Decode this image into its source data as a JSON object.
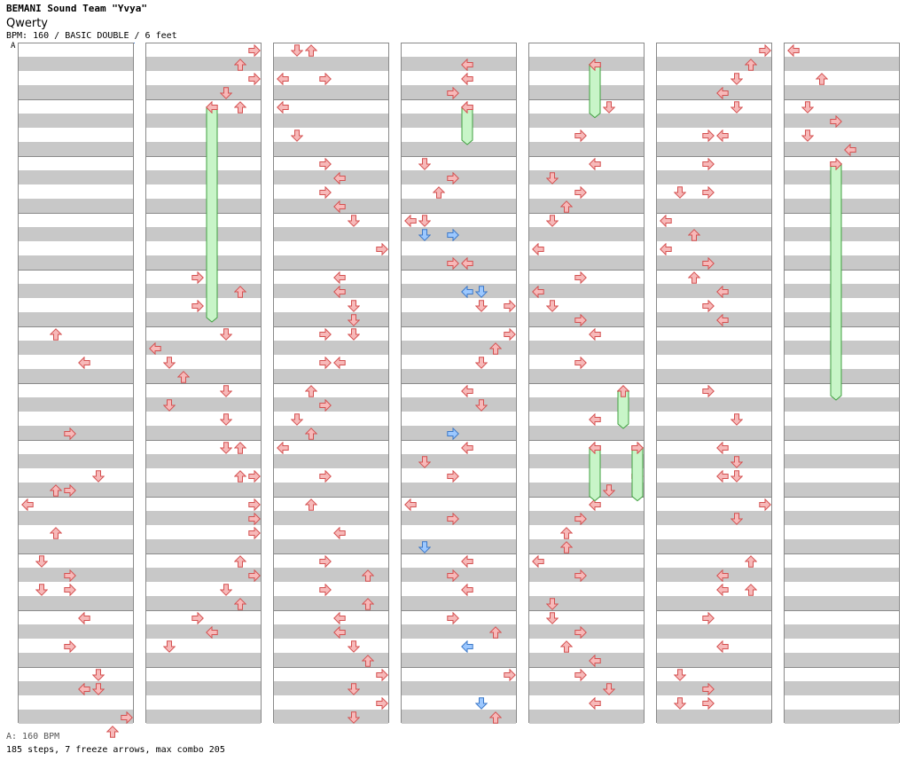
{
  "header": {
    "artist": "BEMANI Sound Team \"Yvya\"",
    "song": "Qwerty",
    "info": "BPM: 160 / BASIC DOUBLE / 6 feet"
  },
  "bpm_marker": "A",
  "footer": {
    "bpm_line": "A: 160 BPM",
    "stats": "185 steps, 7 freeze arrows, max combo 205"
  },
  "colors": {
    "note_red": "#f7b9b9",
    "note_red_stroke": "#d45050",
    "note_blue": "#9cc8ff",
    "note_blue_stroke": "#3c78c8",
    "freeze": "#c8f5c8",
    "freeze_stroke": "#3f9f3f",
    "band": "#c8c8c8"
  },
  "chart": {
    "columns": [
      [
        [
          20,
          2,
          "r"
        ],
        [
          22,
          4,
          "r"
        ],
        [
          27,
          3,
          "r"
        ],
        [
          30,
          5,
          "r"
        ],
        [
          31,
          2,
          "r"
        ],
        [
          31,
          3,
          "r"
        ],
        [
          32,
          0,
          "r"
        ],
        [
          34,
          2,
          "r"
        ],
        [
          36,
          1,
          "r"
        ],
        [
          37,
          3,
          "r"
        ],
        [
          38,
          1,
          "r"
        ],
        [
          38,
          3,
          "r"
        ],
        [
          40,
          4,
          "r"
        ],
        [
          42,
          3,
          "r"
        ],
        [
          44,
          5,
          "r"
        ],
        [
          45,
          4,
          "r"
        ],
        [
          45,
          5,
          "r"
        ],
        [
          47,
          7,
          "r"
        ],
        [
          48,
          6,
          "r"
        ]
      ],
      [
        [
          0,
          7,
          "r"
        ],
        [
          1,
          6,
          "r"
        ],
        [
          2,
          7,
          "r"
        ],
        [
          3,
          5,
          "r"
        ],
        [
          4,
          6,
          "r"
        ],
        [
          16,
          3,
          "r"
        ],
        [
          17,
          6,
          "r"
        ],
        [
          18,
          3,
          "r"
        ],
        [
          20,
          5,
          "r"
        ],
        [
          21,
          0,
          "r"
        ],
        [
          22,
          1,
          "r"
        ],
        [
          23,
          2,
          "r"
        ],
        [
          24,
          5,
          "r"
        ],
        [
          25,
          1,
          "r"
        ],
        [
          26,
          5,
          "r"
        ],
        [
          28,
          5,
          "r"
        ],
        [
          28,
          6,
          "r"
        ],
        [
          30,
          6,
          "r"
        ],
        [
          30,
          7,
          "r"
        ],
        [
          32,
          7,
          "r"
        ],
        [
          33,
          7,
          "r"
        ],
        [
          34,
          7,
          "r"
        ],
        [
          36,
          6,
          "r"
        ],
        [
          37,
          7,
          "r"
        ],
        [
          38,
          5,
          "r"
        ],
        [
          39,
          6,
          "r"
        ],
        [
          40,
          3,
          "r"
        ],
        [
          41,
          4,
          "r"
        ],
        [
          42,
          1,
          "r"
        ]
      ],
      [
        [
          0,
          1,
          "r"
        ],
        [
          0,
          2,
          "r"
        ],
        [
          2,
          0,
          "r"
        ],
        [
          2,
          3,
          "r"
        ],
        [
          4,
          0,
          "r"
        ],
        [
          6,
          1,
          "r"
        ],
        [
          8,
          3,
          "r"
        ],
        [
          9,
          4,
          "r"
        ],
        [
          10,
          3,
          "r"
        ],
        [
          11,
          4,
          "r"
        ],
        [
          12,
          5,
          "r"
        ],
        [
          14,
          7,
          "r"
        ],
        [
          16,
          4,
          "r"
        ],
        [
          17,
          4,
          "r"
        ],
        [
          18,
          5,
          "r"
        ],
        [
          19,
          5,
          "r"
        ],
        [
          20,
          3,
          "r"
        ],
        [
          20,
          5,
          "r"
        ],
        [
          22,
          3,
          "r"
        ],
        [
          22,
          4,
          "r"
        ],
        [
          24,
          2,
          "r"
        ],
        [
          25,
          3,
          "r"
        ],
        [
          26,
          1,
          "r"
        ],
        [
          27,
          2,
          "r"
        ],
        [
          28,
          0,
          "r"
        ],
        [
          30,
          3,
          "r"
        ],
        [
          32,
          2,
          "r"
        ],
        [
          34,
          4,
          "r"
        ],
        [
          36,
          3,
          "r"
        ],
        [
          37,
          6,
          "r"
        ],
        [
          38,
          3,
          "r"
        ],
        [
          39,
          6,
          "r"
        ],
        [
          40,
          4,
          "r"
        ],
        [
          41,
          4,
          "r"
        ],
        [
          42,
          5,
          "r"
        ],
        [
          43,
          6,
          "r"
        ],
        [
          44,
          7,
          "r"
        ],
        [
          45,
          5,
          "r"
        ],
        [
          46,
          7,
          "r"
        ],
        [
          47,
          5,
          "r"
        ]
      ],
      [
        [
          1,
          4,
          "r"
        ],
        [
          2,
          4,
          "r"
        ],
        [
          3,
          3,
          "r"
        ],
        [
          4,
          4,
          "r"
        ],
        [
          8,
          1,
          "r"
        ],
        [
          9,
          3,
          "r"
        ],
        [
          10,
          2,
          "r"
        ],
        [
          12,
          0,
          "r"
        ],
        [
          12,
          1,
          "r"
        ],
        [
          13,
          1,
          "b"
        ],
        [
          13,
          3,
          "b"
        ],
        [
          15,
          3,
          "r"
        ],
        [
          15,
          4,
          "r"
        ],
        [
          17,
          4,
          "b"
        ],
        [
          17,
          5,
          "b"
        ],
        [
          18,
          5,
          "r"
        ],
        [
          18,
          7,
          "r"
        ],
        [
          20,
          7,
          "r"
        ],
        [
          21,
          6,
          "r"
        ],
        [
          22,
          5,
          "r"
        ],
        [
          24,
          4,
          "r"
        ],
        [
          25,
          5,
          "r"
        ],
        [
          27,
          3,
          "b"
        ],
        [
          28,
          4,
          "r"
        ],
        [
          29,
          1,
          "r"
        ],
        [
          30,
          3,
          "r"
        ],
        [
          32,
          0,
          "r"
        ],
        [
          33,
          3,
          "r"
        ],
        [
          35,
          1,
          "b"
        ],
        [
          36,
          4,
          "r"
        ],
        [
          37,
          3,
          "r"
        ],
        [
          38,
          4,
          "r"
        ],
        [
          40,
          3,
          "r"
        ],
        [
          41,
          6,
          "r"
        ],
        [
          42,
          4,
          "b"
        ],
        [
          44,
          7,
          "r"
        ],
        [
          46,
          5,
          "b"
        ],
        [
          47,
          6,
          "r"
        ]
      ],
      [
        [
          1,
          4,
          "r"
        ],
        [
          4,
          5,
          "r"
        ],
        [
          6,
          3,
          "r"
        ],
        [
          8,
          4,
          "r"
        ],
        [
          9,
          1,
          "r"
        ],
        [
          10,
          3,
          "r"
        ],
        [
          11,
          2,
          "r"
        ],
        [
          12,
          1,
          "r"
        ],
        [
          14,
          0,
          "r"
        ],
        [
          16,
          3,
          "r"
        ],
        [
          17,
          0,
          "r"
        ],
        [
          18,
          1,
          "r"
        ],
        [
          19,
          3,
          "r"
        ],
        [
          20,
          4,
          "r"
        ],
        [
          22,
          3,
          "r"
        ],
        [
          24,
          6,
          "r"
        ],
        [
          26,
          4,
          "r"
        ],
        [
          28,
          4,
          "r"
        ],
        [
          28,
          7,
          "r"
        ],
        [
          30,
          7,
          "r"
        ],
        [
          31,
          5,
          "r"
        ],
        [
          32,
          4,
          "r"
        ],
        [
          33,
          3,
          "r"
        ],
        [
          34,
          2,
          "r"
        ],
        [
          35,
          2,
          "r"
        ],
        [
          36,
          0,
          "r"
        ],
        [
          37,
          3,
          "r"
        ],
        [
          39,
          1,
          "r"
        ],
        [
          40,
          1,
          "r"
        ],
        [
          41,
          3,
          "r"
        ],
        [
          42,
          2,
          "r"
        ],
        [
          43,
          4,
          "r"
        ],
        [
          44,
          3,
          "r"
        ],
        [
          45,
          5,
          "r"
        ],
        [
          46,
          4,
          "r"
        ]
      ],
      [
        [
          0,
          7,
          "r"
        ],
        [
          1,
          6,
          "r"
        ],
        [
          2,
          5,
          "r"
        ],
        [
          3,
          4,
          "r"
        ],
        [
          4,
          5,
          "r"
        ],
        [
          6,
          3,
          "r"
        ],
        [
          6,
          4,
          "r"
        ],
        [
          8,
          3,
          "r"
        ],
        [
          10,
          1,
          "r"
        ],
        [
          10,
          3,
          "r"
        ],
        [
          12,
          0,
          "r"
        ],
        [
          13,
          2,
          "r"
        ],
        [
          14,
          0,
          "r"
        ],
        [
          15,
          3,
          "r"
        ],
        [
          16,
          2,
          "r"
        ],
        [
          17,
          4,
          "r"
        ],
        [
          18,
          3,
          "r"
        ],
        [
          19,
          4,
          "r"
        ],
        [
          24,
          3,
          "r"
        ],
        [
          26,
          5,
          "r"
        ],
        [
          28,
          4,
          "r"
        ],
        [
          29,
          5,
          "r"
        ],
        [
          30,
          4,
          "r"
        ],
        [
          30,
          5,
          "r"
        ],
        [
          32,
          7,
          "r"
        ],
        [
          33,
          5,
          "r"
        ],
        [
          36,
          6,
          "r"
        ],
        [
          37,
          4,
          "r"
        ],
        [
          38,
          4,
          "r"
        ],
        [
          38,
          6,
          "r"
        ],
        [
          40,
          3,
          "r"
        ],
        [
          42,
          4,
          "r"
        ],
        [
          44,
          1,
          "r"
        ],
        [
          45,
          3,
          "r"
        ],
        [
          46,
          1,
          "r"
        ],
        [
          46,
          3,
          "r"
        ]
      ],
      [
        [
          0,
          0,
          "r"
        ],
        [
          2,
          2,
          "r"
        ],
        [
          4,
          1,
          "r"
        ],
        [
          5,
          3,
          "r"
        ],
        [
          6,
          1,
          "r"
        ],
        [
          7,
          4,
          "r"
        ],
        [
          8,
          3,
          "r"
        ]
      ]
    ],
    "freezes": [
      [
        1,
        4,
        15,
        "r"
      ],
      [
        3,
        3,
        4,
        "r"
      ],
      [
        6,
        0,
        3,
        "r"
      ],
      [
        4,
        24,
        26,
        "r"
      ],
      [
        4,
        28,
        31,
        "r"
      ],
      [
        4,
        28,
        31,
        "r"
      ],
      [
        6,
        8,
        24,
        "r"
      ]
    ]
  }
}
